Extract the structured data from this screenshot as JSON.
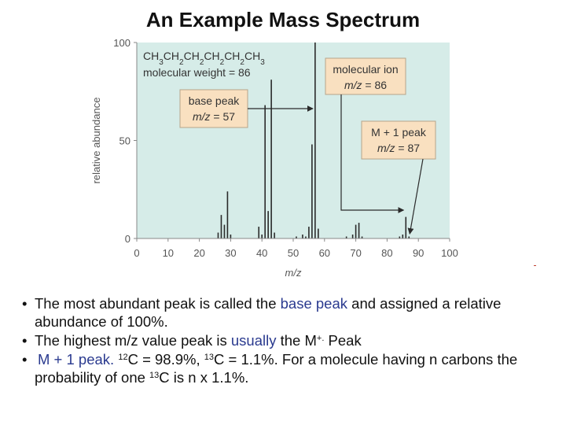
{
  "slide": {
    "title": "An Example Mass Spectrum"
  },
  "chart_data": {
    "type": "bar",
    "xlabel": "m/z",
    "ylabel": "relative abundance",
    "xlim": [
      0,
      100
    ],
    "ylim": [
      0,
      100
    ],
    "x_ticks": [
      "0",
      "10",
      "20",
      "30",
      "40",
      "50",
      "60",
      "70",
      "80",
      "90",
      "100"
    ],
    "y_ticks": [
      "0",
      "50",
      "100"
    ],
    "grid": false,
    "background_color": "#d6ece8",
    "bar_color": "#2a2a2a",
    "annotation_box_color": "#f9e0c0",
    "arrow_color": "#2a2a2a",
    "formula": {
      "text": "CH3CH2CH2CH2CH2CH3",
      "line1_parts": [
        "CH",
        "3",
        "CH",
        "2",
        "CH",
        "2",
        "CH",
        "2",
        "CH",
        "2",
        "CH",
        "3"
      ],
      "line2": "molecular weight = 86"
    },
    "annotations": [
      {
        "line1": "base peak",
        "line2": "m/z = 57",
        "target_x": 57
      },
      {
        "line1": "molecular ion",
        "line2": "m/z = 86",
        "target_x": 86
      },
      {
        "line1": "M + 1 peak",
        "line2": "m/z = 87",
        "target_x": 87
      }
    ],
    "peaks": [
      {
        "x": 26,
        "y": 3
      },
      {
        "x": 27,
        "y": 12
      },
      {
        "x": 28,
        "y": 7
      },
      {
        "x": 29,
        "y": 24
      },
      {
        "x": 30,
        "y": 2
      },
      {
        "x": 39,
        "y": 6
      },
      {
        "x": 40,
        "y": 2
      },
      {
        "x": 41,
        "y": 68
      },
      {
        "x": 42,
        "y": 14
      },
      {
        "x": 43,
        "y": 81
      },
      {
        "x": 44,
        "y": 3
      },
      {
        "x": 51,
        "y": 1
      },
      {
        "x": 53,
        "y": 2
      },
      {
        "x": 54,
        "y": 1
      },
      {
        "x": 55,
        "y": 6
      },
      {
        "x": 56,
        "y": 48
      },
      {
        "x": 57,
        "y": 100
      },
      {
        "x": 58,
        "y": 5
      },
      {
        "x": 67,
        "y": 1
      },
      {
        "x": 69,
        "y": 2
      },
      {
        "x": 70,
        "y": 7
      },
      {
        "x": 71,
        "y": 8
      },
      {
        "x": 72,
        "y": 1
      },
      {
        "x": 84,
        "y": 1
      },
      {
        "x": 85,
        "y": 2
      },
      {
        "x": 86,
        "y": 11
      },
      {
        "x": 87,
        "y": 1
      }
    ]
  },
  "bullets": [
    {
      "pre": "The most abundant peak is called the ",
      "highlight": "base peak",
      "post": " and assigned a relative abundance of 100%."
    },
    {
      "pre": "The highest m/z value peak is ",
      "highlight": "usually",
      "post": " the M",
      "sup": "+.",
      "post2": " Peak"
    },
    {
      "highlight": "M + 1 peak.",
      "iso1_sup": "12",
      "iso1": "C = 98.9%, ",
      "iso2_sup": "13",
      "iso2": "C = 1.1%. For a molecule having n carbons the probability of one ",
      "iso3_sup": "13",
      "iso3": "C is n x 1.1%."
    }
  ]
}
